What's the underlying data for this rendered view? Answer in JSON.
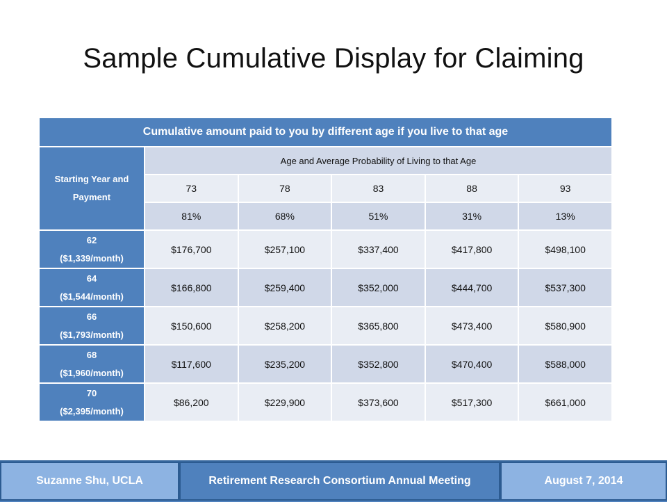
{
  "slide": {
    "title": "Sample Cumulative Display for Claiming"
  },
  "table": {
    "caption": "Cumulative amount paid to you by different age if you live to that age",
    "row_header": "Starting Year and Payment",
    "sub_header": "Age and Average Probability of Living to that Age",
    "ages": [
      "73",
      "78",
      "83",
      "88",
      "93"
    ],
    "probabilities": [
      "81%",
      "68%",
      "51%",
      "31%",
      "13%"
    ],
    "rows": [
      {
        "start": "62",
        "payment": "($1,339/month)",
        "values": [
          "$176,700",
          "$257,100",
          "$337,400",
          "$417,800",
          "$498,100"
        ]
      },
      {
        "start": "64",
        "payment": "($1,544/month)",
        "values": [
          "$166,800",
          "$259,400",
          "$352,000",
          "$444,700",
          "$537,300"
        ]
      },
      {
        "start": "66",
        "payment": "($1,793/month)",
        "values": [
          "$150,600",
          "$258,200",
          "$365,800",
          "$473,400",
          "$580,900"
        ]
      },
      {
        "start": "68",
        "payment": "($1,960/month)",
        "values": [
          "$117,600",
          "$235,200",
          "$352,800",
          "$470,400",
          "$588,000"
        ]
      },
      {
        "start": "70",
        "payment": "($2,395/month)",
        "values": [
          "$86,200",
          "$229,900",
          "$373,600",
          "$517,300",
          "$661,000"
        ]
      }
    ]
  },
  "footer": {
    "left": "Suzanne Shu, UCLA",
    "center": "Retirement Research Consortium Annual Meeting",
    "right": "August 7, 2014"
  }
}
